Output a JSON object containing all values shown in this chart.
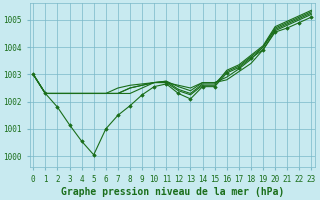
{
  "title": "Graphe pression niveau de la mer (hPa)",
  "bg_color": "#c8eaf0",
  "grid_color": "#7ab8c8",
  "line_color": "#1a6e1a",
  "marker_color": "#1a6e1a",
  "x_ticks": [
    0,
    1,
    2,
    3,
    4,
    5,
    6,
    7,
    8,
    9,
    10,
    11,
    12,
    13,
    14,
    15,
    16,
    17,
    18,
    19,
    20,
    21,
    22,
    23
  ],
  "y_ticks": [
    1000,
    1001,
    1002,
    1003,
    1004,
    1005
  ],
  "ylim": [
    999.6,
    1005.6
  ],
  "xlim": [
    -0.3,
    23.3
  ],
  "series": [
    [
      1003.0,
      1002.3,
      1002.3,
      1002.3,
      1002.3,
      1002.3,
      1002.3,
      1002.3,
      1002.3,
      1002.5,
      1002.7,
      1002.7,
      1002.6,
      1002.5,
      1002.7,
      1002.7,
      1002.8,
      1003.1,
      1003.4,
      1003.9,
      1004.6,
      1004.8,
      1005.0,
      1005.2
    ],
    [
      1003.0,
      1002.3,
      1002.3,
      1002.3,
      1002.3,
      1002.3,
      1002.3,
      1002.3,
      1002.5,
      1002.6,
      1002.7,
      1002.75,
      1002.55,
      1002.4,
      1002.7,
      1002.7,
      1002.9,
      1003.2,
      1003.55,
      1004.0,
      1004.65,
      1004.85,
      1005.05,
      1005.25
    ],
    [
      1003.0,
      1002.3,
      1002.3,
      1002.3,
      1002.3,
      1002.3,
      1002.3,
      1002.3,
      1002.5,
      1002.6,
      1002.7,
      1002.75,
      1002.45,
      1002.3,
      1002.65,
      1002.65,
      1003.1,
      1003.3,
      1003.65,
      1004.0,
      1004.7,
      1004.9,
      1005.1,
      1005.3
    ],
    [
      1003.0,
      1002.3,
      1002.3,
      1002.3,
      1002.3,
      1002.3,
      1002.3,
      1002.5,
      1002.6,
      1002.65,
      1002.7,
      1002.7,
      1002.4,
      1002.25,
      1002.6,
      1002.6,
      1003.15,
      1003.35,
      1003.7,
      1004.05,
      1004.75,
      1004.95,
      1005.15,
      1005.35
    ],
    [
      1003.0,
      1002.3,
      1001.8,
      1001.15,
      1000.55,
      1000.05,
      1001.0,
      1001.5,
      1001.85,
      1002.25,
      1002.55,
      1002.65,
      1002.3,
      1002.1,
      1002.55,
      1002.55,
      1003.05,
      1003.25,
      1003.6,
      1003.9,
      1004.55,
      1004.7,
      1004.9,
      1005.1
    ]
  ],
  "has_markers": [
    false,
    false,
    false,
    false,
    true
  ],
  "font_family": "monospace",
  "title_fontsize": 7.0,
  "tick_fontsize": 5.5
}
